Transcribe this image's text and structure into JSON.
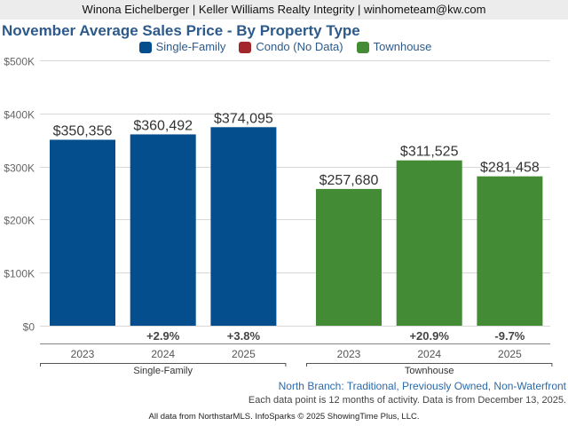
{
  "header": {
    "agent_line": "Winona Eichelberger | Keller Williams Realty Integrity | winhometeam@kw.com"
  },
  "chart_data": {
    "type": "bar",
    "title": "November Average Sales Price - By Property Type",
    "legend": [
      {
        "name": "Single-Family",
        "color": "#054e8e"
      },
      {
        "name": "Condo (No Data)",
        "color": "#a3282b"
      },
      {
        "name": "Townhouse",
        "color": "#438c35"
      }
    ],
    "legend_placement": "top-center",
    "ylim": [
      0,
      500000
    ],
    "yticks": [
      0,
      100000,
      200000,
      300000,
      400000,
      500000
    ],
    "ytick_labels": [
      "$0",
      "$100K",
      "$200K",
      "$300K",
      "$400K",
      "$500K"
    ],
    "grid": true,
    "groups": [
      {
        "name": "Single-Family",
        "color": "#054e8e",
        "categories": [
          "2023",
          "2024",
          "2025"
        ],
        "values": [
          350356,
          360492,
          374095
        ],
        "value_labels": [
          "$350,356",
          "$360,492",
          "$374,095"
        ],
        "changes": [
          "",
          "+2.9%",
          "+3.8%"
        ]
      },
      {
        "name": "Townhouse",
        "color": "#438c35",
        "categories": [
          "2023",
          "2024",
          "2025"
        ],
        "values": [
          257680,
          311525,
          281458
        ],
        "value_labels": [
          "$257,680",
          "$311,525",
          "$281,458"
        ],
        "changes": [
          "",
          "+20.9%",
          "-9.7%"
        ]
      }
    ],
    "xlabel": "",
    "ylabel": ""
  },
  "footer": {
    "filter_line": "North Branch: Traditional, Previously Owned, Non-Waterfront",
    "note_line": "Each data point is 12 months of activity. Data is from December 13, 2025.",
    "source_line": "All data from NorthstarMLS. InfoSparks © 2025 ShowingTime Plus, LLC."
  }
}
